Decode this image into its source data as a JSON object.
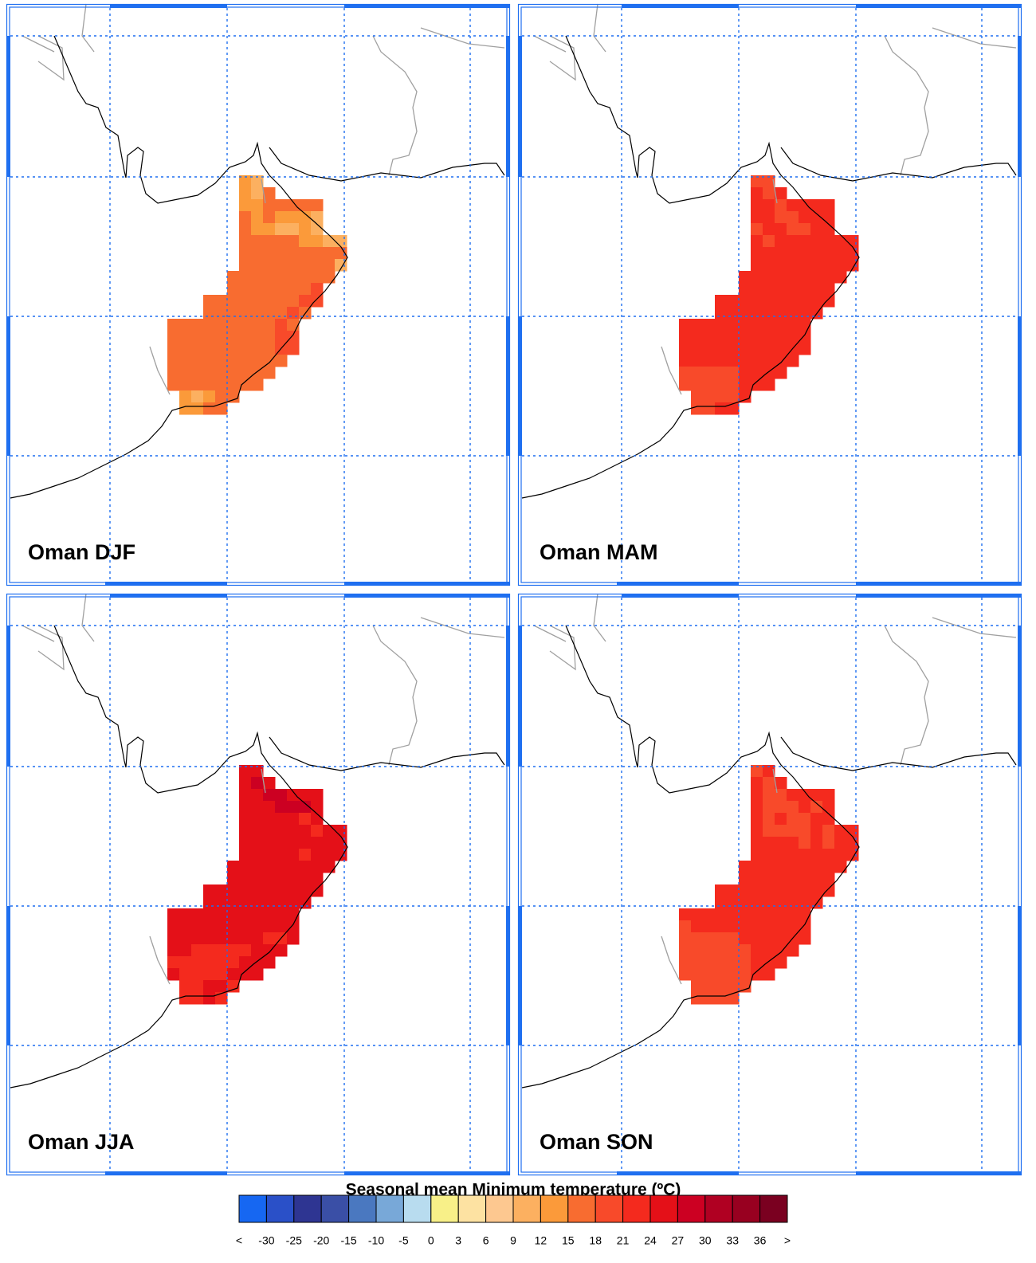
{
  "panels": [
    {
      "label": "Oman DJF",
      "cells": [
        [
          null,
          null,
          null,
          null,
          null,
          null,
          13.5,
          10.5
        ],
        [
          null,
          null,
          null,
          null,
          null,
          null,
          13.5,
          10.5,
          16.5
        ],
        [
          null,
          null,
          null,
          null,
          null,
          null,
          13.5,
          13.5,
          16.5,
          16.5,
          16.5,
          16.5,
          16.5
        ],
        [
          null,
          null,
          null,
          null,
          null,
          null,
          16.5,
          13.5,
          16.5,
          13.5,
          13.5,
          13.5,
          10.5
        ],
        [
          null,
          null,
          null,
          null,
          null,
          null,
          16.5,
          13.5,
          13.5,
          10.5,
          10.5,
          13.5,
          10.5
        ],
        [
          null,
          null,
          null,
          null,
          null,
          null,
          16.5,
          16.5,
          16.5,
          16.5,
          16.5,
          13.5,
          13.5,
          10.5,
          10.5
        ],
        [
          null,
          null,
          null,
          null,
          null,
          null,
          16.5,
          16.5,
          16.5,
          16.5,
          16.5,
          16.5,
          16.5,
          16.5,
          16.5
        ],
        [
          null,
          null,
          null,
          null,
          null,
          null,
          16.5,
          16.5,
          16.5,
          16.5,
          16.5,
          16.5,
          16.5,
          16.5,
          10.5
        ],
        [
          null,
          null,
          null,
          null,
          null,
          16.5,
          16.5,
          16.5,
          16.5,
          16.5,
          16.5,
          16.5,
          16.5,
          16.5
        ],
        [
          null,
          null,
          null,
          null,
          null,
          16.5,
          16.5,
          16.5,
          16.5,
          16.5,
          16.5,
          16.5,
          19.5
        ],
        [
          null,
          null,
          null,
          16.5,
          16.5,
          16.5,
          16.5,
          16.5,
          16.5,
          16.5,
          16.5,
          19.5,
          19.5
        ],
        [
          null,
          null,
          null,
          16.5,
          16.5,
          16.5,
          16.5,
          16.5,
          16.5,
          16.5,
          19.5,
          16.5
        ],
        [
          16.5,
          16.5,
          16.5,
          16.5,
          16.5,
          16.5,
          16.5,
          16.5,
          16.5,
          19.5,
          16.5
        ],
        [
          16.5,
          16.5,
          16.5,
          16.5,
          16.5,
          16.5,
          16.5,
          16.5,
          16.5,
          19.5,
          19.5
        ],
        [
          16.5,
          16.5,
          16.5,
          16.5,
          16.5,
          16.5,
          16.5,
          16.5,
          16.5,
          19.5,
          19.5
        ],
        [
          16.5,
          16.5,
          16.5,
          16.5,
          16.5,
          16.5,
          16.5,
          16.5,
          16.5,
          16.5
        ],
        [
          16.5,
          16.5,
          16.5,
          16.5,
          16.5,
          16.5,
          16.5,
          16.5,
          16.5
        ],
        [
          16.5,
          16.5,
          16.5,
          16.5,
          16.5,
          16.5,
          16.5,
          16.5
        ],
        [
          null,
          13.5,
          10.5,
          13.5,
          16.5,
          16.5
        ],
        [
          null,
          13.5,
          13.5,
          16.5,
          16.5
        ]
      ]
    },
    {
      "label": "Oman MAM",
      "cells": [
        [
          null,
          null,
          null,
          null,
          null,
          null,
          19.5,
          19.5
        ],
        [
          null,
          null,
          null,
          null,
          null,
          null,
          22.5,
          19.5,
          22.5
        ],
        [
          null,
          null,
          null,
          null,
          null,
          null,
          22.5,
          22.5,
          19.5,
          22.5,
          22.5,
          22.5,
          22.5
        ],
        [
          null,
          null,
          null,
          null,
          null,
          null,
          22.5,
          22.5,
          19.5,
          19.5,
          22.5,
          22.5,
          22.5
        ],
        [
          null,
          null,
          null,
          null,
          null,
          null,
          19.5,
          22.5,
          22.5,
          19.5,
          19.5,
          22.5,
          22.5
        ],
        [
          null,
          null,
          null,
          null,
          null,
          null,
          22.5,
          19.5,
          22.5,
          22.5,
          22.5,
          22.5,
          22.5,
          22.5,
          22.5
        ],
        [
          null,
          null,
          null,
          null,
          null,
          null,
          22.5,
          22.5,
          22.5,
          22.5,
          22.5,
          22.5,
          22.5,
          22.5,
          22.5
        ],
        [
          null,
          null,
          null,
          null,
          null,
          null,
          22.5,
          22.5,
          22.5,
          22.5,
          22.5,
          22.5,
          22.5,
          22.5,
          22.5
        ],
        [
          null,
          null,
          null,
          null,
          null,
          22.5,
          22.5,
          22.5,
          22.5,
          22.5,
          22.5,
          22.5,
          22.5,
          22.5
        ],
        [
          null,
          null,
          null,
          null,
          null,
          22.5,
          22.5,
          22.5,
          22.5,
          22.5,
          22.5,
          22.5,
          22.5
        ],
        [
          null,
          null,
          null,
          22.5,
          22.5,
          22.5,
          22.5,
          22.5,
          22.5,
          22.5,
          22.5,
          22.5,
          22.5
        ],
        [
          null,
          null,
          null,
          22.5,
          22.5,
          22.5,
          22.5,
          22.5,
          22.5,
          22.5,
          22.5,
          22.5
        ],
        [
          22.5,
          22.5,
          22.5,
          22.5,
          22.5,
          22.5,
          22.5,
          22.5,
          22.5,
          22.5,
          22.5
        ],
        [
          22.5,
          22.5,
          22.5,
          22.5,
          22.5,
          22.5,
          22.5,
          22.5,
          22.5,
          22.5,
          22.5
        ],
        [
          22.5,
          22.5,
          22.5,
          22.5,
          22.5,
          22.5,
          22.5,
          22.5,
          22.5,
          22.5,
          22.5
        ],
        [
          22.5,
          22.5,
          22.5,
          22.5,
          22.5,
          22.5,
          22.5,
          22.5,
          22.5,
          22.5
        ],
        [
          19.5,
          19.5,
          19.5,
          19.5,
          19.5,
          22.5,
          22.5,
          22.5,
          22.5
        ],
        [
          19.5,
          19.5,
          19.5,
          19.5,
          19.5,
          22.5,
          22.5,
          22.5
        ],
        [
          null,
          19.5,
          19.5,
          19.5,
          19.5,
          22.5
        ],
        [
          null,
          19.5,
          19.5,
          22.5,
          22.5
        ]
      ]
    },
    {
      "label": "Oman JJA",
      "cells": [
        [
          null,
          null,
          null,
          null,
          null,
          null,
          25.5,
          25.5
        ],
        [
          null,
          null,
          null,
          null,
          null,
          null,
          25.5,
          28.5,
          25.5
        ],
        [
          null,
          null,
          null,
          null,
          null,
          null,
          25.5,
          25.5,
          28.5,
          28.5,
          25.5,
          25.5,
          25.5
        ],
        [
          null,
          null,
          null,
          null,
          null,
          null,
          25.5,
          25.5,
          25.5,
          28.5,
          28.5,
          28.5,
          25.5
        ],
        [
          null,
          null,
          null,
          null,
          null,
          null,
          25.5,
          25.5,
          25.5,
          25.5,
          25.5,
          22.5,
          25.5
        ],
        [
          null,
          null,
          null,
          null,
          null,
          null,
          25.5,
          25.5,
          25.5,
          25.5,
          25.5,
          25.5,
          22.5,
          25.5,
          25.5
        ],
        [
          null,
          null,
          null,
          null,
          null,
          null,
          25.5,
          25.5,
          25.5,
          25.5,
          25.5,
          25.5,
          25.5,
          25.5,
          25.5
        ],
        [
          null,
          null,
          null,
          null,
          null,
          null,
          25.5,
          25.5,
          25.5,
          25.5,
          25.5,
          22.5,
          25.5,
          25.5,
          25.5
        ],
        [
          null,
          null,
          null,
          null,
          null,
          25.5,
          25.5,
          25.5,
          25.5,
          25.5,
          25.5,
          25.5,
          25.5,
          25.5
        ],
        [
          null,
          null,
          null,
          null,
          null,
          25.5,
          25.5,
          25.5,
          25.5,
          25.5,
          25.5,
          25.5,
          25.5
        ],
        [
          null,
          null,
          null,
          25.5,
          25.5,
          25.5,
          25.5,
          25.5,
          25.5,
          25.5,
          25.5,
          25.5,
          25.5
        ],
        [
          null,
          null,
          null,
          25.5,
          25.5,
          25.5,
          25.5,
          25.5,
          25.5,
          25.5,
          25.5,
          25.5
        ],
        [
          25.5,
          25.5,
          25.5,
          25.5,
          25.5,
          25.5,
          25.5,
          25.5,
          25.5,
          25.5,
          25.5
        ],
        [
          25.5,
          25.5,
          25.5,
          25.5,
          25.5,
          25.5,
          25.5,
          25.5,
          25.5,
          25.5,
          25.5
        ],
        [
          25.5,
          25.5,
          25.5,
          25.5,
          25.5,
          25.5,
          25.5,
          25.5,
          22.5,
          22.5,
          25.5
        ],
        [
          25.5,
          25.5,
          22.5,
          22.5,
          22.5,
          22.5,
          22.5,
          25.5,
          25.5,
          25.5
        ],
        [
          22.5,
          22.5,
          22.5,
          22.5,
          22.5,
          22.5,
          25.5,
          25.5,
          25.5
        ],
        [
          25.5,
          22.5,
          22.5,
          22.5,
          22.5,
          25.5,
          25.5,
          25.5
        ],
        [
          null,
          22.5,
          22.5,
          25.5,
          25.5,
          22.5
        ],
        [
          null,
          22.5,
          22.5,
          25.5,
          22.5
        ]
      ]
    },
    {
      "label": "Oman SON",
      "cells": [
        [
          null,
          null,
          null,
          null,
          null,
          null,
          19.5,
          22.5
        ],
        [
          null,
          null,
          null,
          null,
          null,
          null,
          22.5,
          19.5,
          22.5
        ],
        [
          null,
          null,
          null,
          null,
          null,
          null,
          22.5,
          19.5,
          19.5,
          22.5,
          22.5,
          22.5,
          22.5
        ],
        [
          null,
          null,
          null,
          null,
          null,
          null,
          22.5,
          19.5,
          19.5,
          19.5,
          22.5,
          19.5,
          22.5
        ],
        [
          null,
          null,
          null,
          null,
          null,
          null,
          22.5,
          19.5,
          22.5,
          19.5,
          19.5,
          22.5,
          22.5
        ],
        [
          null,
          null,
          null,
          null,
          null,
          null,
          22.5,
          19.5,
          19.5,
          19.5,
          19.5,
          22.5,
          19.5,
          22.5,
          22.5
        ],
        [
          null,
          null,
          null,
          null,
          null,
          null,
          22.5,
          22.5,
          22.5,
          22.5,
          19.5,
          22.5,
          19.5,
          22.5,
          22.5
        ],
        [
          null,
          null,
          null,
          null,
          null,
          null,
          22.5,
          22.5,
          22.5,
          22.5,
          22.5,
          22.5,
          22.5,
          22.5,
          22.5
        ],
        [
          null,
          null,
          null,
          null,
          null,
          22.5,
          22.5,
          22.5,
          22.5,
          22.5,
          22.5,
          22.5,
          22.5,
          22.5
        ],
        [
          null,
          null,
          null,
          null,
          null,
          22.5,
          22.5,
          22.5,
          22.5,
          22.5,
          22.5,
          22.5,
          22.5
        ],
        [
          null,
          null,
          null,
          22.5,
          22.5,
          22.5,
          22.5,
          22.5,
          22.5,
          22.5,
          22.5,
          22.5,
          22.5
        ],
        [
          null,
          null,
          null,
          22.5,
          22.5,
          22.5,
          22.5,
          22.5,
          22.5,
          22.5,
          22.5,
          22.5
        ],
        [
          22.5,
          22.5,
          22.5,
          22.5,
          22.5,
          22.5,
          22.5,
          22.5,
          22.5,
          22.5,
          22.5
        ],
        [
          19.5,
          22.5,
          22.5,
          22.5,
          22.5,
          22.5,
          22.5,
          22.5,
          22.5,
          22.5,
          22.5
        ],
        [
          19.5,
          19.5,
          19.5,
          19.5,
          19.5,
          22.5,
          22.5,
          22.5,
          22.5,
          22.5,
          22.5
        ],
        [
          19.5,
          19.5,
          19.5,
          19.5,
          19.5,
          19.5,
          22.5,
          22.5,
          22.5,
          22.5
        ],
        [
          19.5,
          19.5,
          19.5,
          19.5,
          19.5,
          19.5,
          22.5,
          22.5,
          22.5
        ],
        [
          19.5,
          19.5,
          19.5,
          19.5,
          19.5,
          19.5,
          22.5,
          22.5
        ],
        [
          null,
          19.5,
          19.5,
          19.5,
          19.5,
          19.5
        ],
        [
          null,
          19.5,
          19.5,
          19.5,
          19.5
        ]
      ]
    }
  ],
  "colorbar": {
    "title": "Seasonal mean Minimum temperature (ºC)",
    "labels": [
      "<",
      -30,
      -25,
      -20,
      -15,
      -10,
      -5,
      0,
      3,
      6,
      9,
      12,
      15,
      18,
      21,
      24,
      27,
      30,
      33,
      36,
      ">"
    ],
    "colors": [
      "#1667f2",
      "#2a50c8",
      "#2e3592",
      "#3a4fa6",
      "#4a78c0",
      "#78a8d8",
      "#b8dcef",
      "#f8f088",
      "#fde2a2",
      "#fdc890",
      "#fcb060",
      "#fb9a3a",
      "#f86c30",
      "#f84a2a",
      "#f42a1e",
      "#e41018",
      "#cc0022",
      "#b00022",
      "#980020",
      "#7a0020"
    ]
  }
}
